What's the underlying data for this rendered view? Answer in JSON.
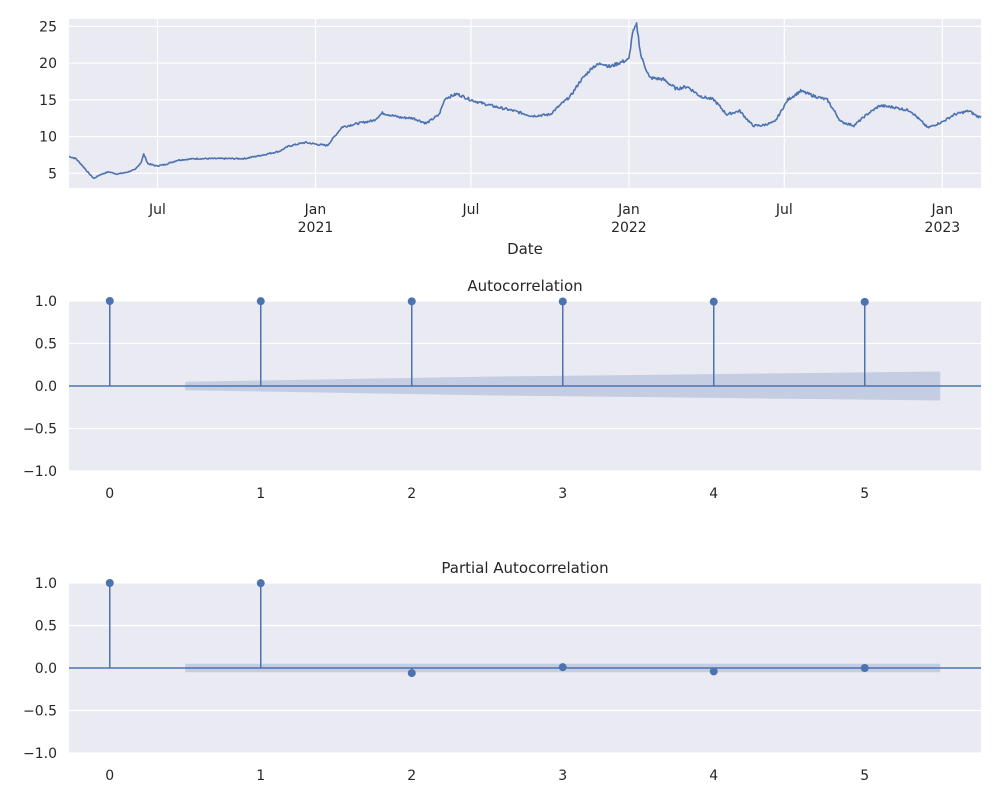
{
  "chart_data": [
    {
      "type": "line",
      "title": "",
      "xlabel": "Date",
      "ylabel": "",
      "color": "#4c72b0",
      "ylim": [
        3,
        26
      ],
      "xlim": [
        "2020-03-20",
        "2023-02-15"
      ],
      "grid": true,
      "y_ticks": [
        5,
        10,
        15,
        20,
        25
      ],
      "x_ticks": [
        {
          "date": "2020-07-01",
          "label": "Jul",
          "sub": ""
        },
        {
          "date": "2021-01-01",
          "label": "Jan",
          "sub": "2021"
        },
        {
          "date": "2021-07-01",
          "label": "Jul",
          "sub": ""
        },
        {
          "date": "2022-01-01",
          "label": "Jan",
          "sub": "2022"
        },
        {
          "date": "2022-07-01",
          "label": "Jul",
          "sub": ""
        },
        {
          "date": "2023-01-01",
          "label": "Jan",
          "sub": "2023"
        }
      ],
      "series": [
        {
          "x": [
            "2020-03-20",
            "2020-03-28",
            "2020-04-05",
            "2020-04-12",
            "2020-04-18",
            "2020-04-25",
            "2020-05-05",
            "2020-05-15",
            "2020-05-25",
            "2020-06-05",
            "2020-06-12",
            "2020-06-15",
            "2020-06-20",
            "2020-06-30",
            "2020-07-10",
            "2020-07-25",
            "2020-08-15",
            "2020-09-10",
            "2020-10-10",
            "2020-11-01",
            "2020-11-20",
            "2020-12-01",
            "2020-12-20",
            "2021-01-05",
            "2021-01-15",
            "2021-02-01",
            "2021-02-20",
            "2021-03-10",
            "2021-03-20",
            "2021-04-10",
            "2021-04-25",
            "2021-05-10",
            "2021-05-25",
            "2021-06-01",
            "2021-06-15",
            "2021-07-01",
            "2021-07-15",
            "2021-08-01",
            "2021-08-20",
            "2021-09-10",
            "2021-10-01",
            "2021-10-15",
            "2021-10-25",
            "2021-11-05",
            "2021-11-20",
            "2021-12-01",
            "2021-12-10",
            "2021-12-20",
            "2022-01-01",
            "2022-01-05",
            "2022-01-10",
            "2022-01-15",
            "2022-01-25",
            "2022-02-10",
            "2022-02-25",
            "2022-03-10",
            "2022-03-25",
            "2022-04-10",
            "2022-04-25",
            "2022-05-10",
            "2022-05-25",
            "2022-06-05",
            "2022-06-20",
            "2022-07-05",
            "2022-07-20",
            "2022-08-05",
            "2022-08-20",
            "2022-09-05",
            "2022-09-20",
            "2022-10-05",
            "2022-10-20",
            "2022-11-05",
            "2022-11-25",
            "2022-12-15",
            "2023-01-01",
            "2023-01-15",
            "2023-02-01",
            "2023-02-10",
            "2023-02-15"
          ],
          "y": [
            7.3,
            7.0,
            6.0,
            5.0,
            4.3,
            4.8,
            5.2,
            4.9,
            5.1,
            5.5,
            6.5,
            7.6,
            6.3,
            6.0,
            6.2,
            6.8,
            7.0,
            7.0,
            7.0,
            7.5,
            8.0,
            8.7,
            9.2,
            8.9,
            8.8,
            11.3,
            11.8,
            12.2,
            13.2,
            12.6,
            12.5,
            11.8,
            13.0,
            15.2,
            15.8,
            15.0,
            14.5,
            14.0,
            13.5,
            12.8,
            13.0,
            14.5,
            15.5,
            17.5,
            19.5,
            20.0,
            19.5,
            20.0,
            20.5,
            24.0,
            25.2,
            21.0,
            18.0,
            17.8,
            16.5,
            16.8,
            15.5,
            15.0,
            13.0,
            13.5,
            11.5,
            11.5,
            12.0,
            15.0,
            16.2,
            15.5,
            15.0,
            12.0,
            11.5,
            13.0,
            14.2,
            14.0,
            13.5,
            11.2,
            12.0,
            13.0,
            13.5,
            12.8,
            12.6
          ]
        }
      ]
    },
    {
      "type": "stem",
      "title": "Autocorrelation",
      "xlabel": "",
      "ylabel": "",
      "color": "#4c72b0",
      "band_color": "#c2cbe0",
      "ylim": [
        -1.0,
        1.0
      ],
      "xlim": [
        -0.27,
        5.77
      ],
      "grid": true,
      "x_ticks": [
        0,
        1,
        2,
        3,
        4,
        5
      ],
      "y_ticks": [
        "1.0",
        "0.5",
        "0.0",
        "−0.5",
        "−1.0"
      ],
      "y_tick_values": [
        1.0,
        0.5,
        0.0,
        -0.5,
        -1.0
      ],
      "lags": [
        0,
        1,
        2,
        3,
        4,
        5
      ],
      "values": [
        1.0,
        0.998,
        0.996,
        0.994,
        0.992,
        0.99
      ],
      "confidence_band": {
        "x": [
          0.5,
          1.5,
          2.5,
          3.5,
          4.5,
          5.5
        ],
        "upper": [
          0.05,
          0.08,
          0.11,
          0.13,
          0.15,
          0.17
        ],
        "lower": [
          -0.05,
          -0.08,
          -0.11,
          -0.13,
          -0.15,
          -0.17
        ]
      }
    },
    {
      "type": "stem",
      "title": "Partial Autocorrelation",
      "xlabel": "",
      "ylabel": "",
      "color": "#4c72b0",
      "band_color": "#c2cbe0",
      "ylim": [
        -1.0,
        1.0
      ],
      "xlim": [
        -0.27,
        5.77
      ],
      "grid": true,
      "x_ticks": [
        0,
        1,
        2,
        3,
        4,
        5
      ],
      "y_ticks": [
        "1.0",
        "0.5",
        "0.0",
        "−0.5",
        "−1.0"
      ],
      "y_tick_values": [
        1.0,
        0.5,
        0.0,
        -0.5,
        -1.0
      ],
      "lags": [
        0,
        1,
        2,
        3,
        4,
        5
      ],
      "values": [
        1.0,
        0.998,
        -0.06,
        0.01,
        -0.04,
        0.0
      ],
      "confidence_band": {
        "x": [
          0.5,
          5.5
        ],
        "upper": [
          0.05,
          0.05
        ],
        "lower": [
          -0.05,
          -0.05
        ]
      }
    }
  ]
}
